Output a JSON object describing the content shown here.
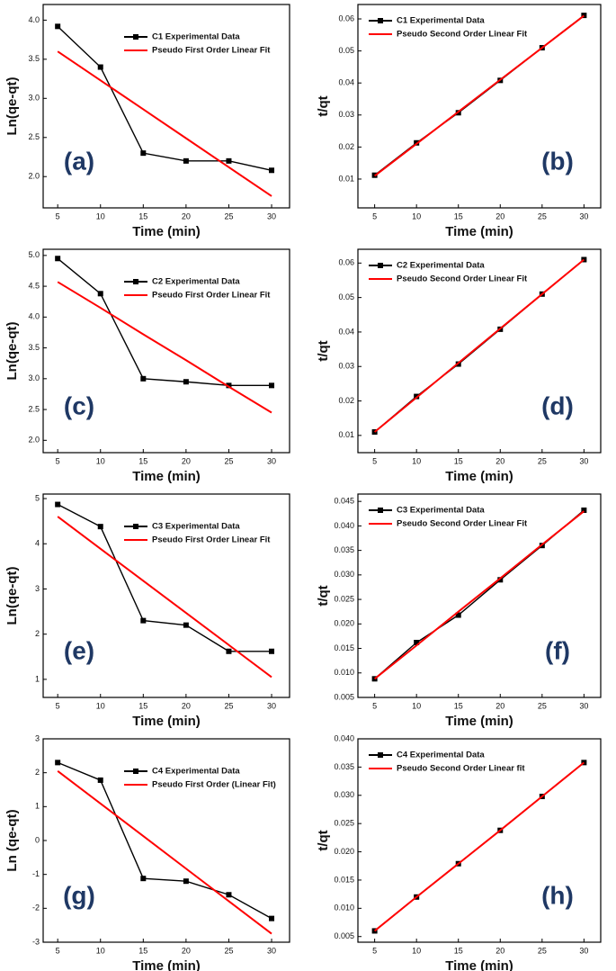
{
  "chart_data": [
    {
      "type": "line",
      "panel": "(a)",
      "xlabel": "Time (min)",
      "ylabel": "Ln(qe-qt)",
      "x": [
        5,
        10,
        15,
        20,
        25,
        30
      ],
      "xlim": [
        3.3,
        32.1
      ],
      "xticks": [
        5,
        10,
        15,
        20,
        25,
        30
      ],
      "ylim": [
        1.6,
        4.2
      ],
      "yticks": [
        {
          "value": 2,
          "label": "2.0"
        },
        2.5,
        {
          "value": 3,
          "label": "3.0"
        },
        3.5,
        {
          "value": 4,
          "label": "4.0"
        }
      ],
      "series": [
        {
          "name": "C1 Experimental Data",
          "color": "#000000",
          "marker": "square",
          "values": [
            3.92,
            3.4,
            2.3,
            2.2,
            2.2,
            2.08
          ]
        },
        {
          "name": "Pseudo First Order Linear Fit",
          "color": "#ff0000",
          "values": [
            3.6,
            3.23,
            2.86,
            2.49,
            2.12,
            1.75
          ]
        }
      ]
    },
    {
      "type": "line",
      "panel": "(b)",
      "xlabel": "Time (min)",
      "ylabel": "t/qt",
      "x": [
        5,
        10,
        15,
        20,
        25,
        30
      ],
      "xlim": [
        3.0,
        32.0
      ],
      "xticks": [
        5,
        10,
        15,
        20,
        25,
        30
      ],
      "ylim": [
        0.001,
        0.0645
      ],
      "yticks": [
        0.01,
        0.02,
        0.03,
        0.04,
        0.05,
        0.06
      ],
      "series": [
        {
          "name": "C1 Experimental Data",
          "color": "#000000",
          "marker": "square",
          "values": [
            0.0112,
            0.0213,
            0.0307,
            0.0408,
            0.051,
            0.0611
          ]
        },
        {
          "name": "Pseudo Second Order Linear Fit",
          "color": "#ff0000",
          "values": [
            0.011,
            0.021,
            0.031,
            0.041,
            0.051,
            0.061
          ]
        }
      ]
    },
    {
      "type": "line",
      "panel": "(c)",
      "xlabel": "Time (min)",
      "ylabel": "Ln(qe-qt)",
      "x": [
        5,
        10,
        15,
        20,
        25,
        30
      ],
      "xlim": [
        3.3,
        32.1
      ],
      "xticks": [
        5,
        10,
        15,
        20,
        25,
        30
      ],
      "ylim": [
        1.8,
        5.1
      ],
      "yticks": [
        {
          "value": 2,
          "label": "2.0"
        },
        2.5,
        {
          "value": 3,
          "label": "3.0"
        },
        3.5,
        {
          "value": 4,
          "label": "4.0"
        },
        4.5,
        {
          "value": 5,
          "label": "5.0"
        }
      ],
      "series": [
        {
          "name": "C2 Experimental Data",
          "color": "#000000",
          "marker": "square",
          "values": [
            4.95,
            4.38,
            3.0,
            2.95,
            2.89,
            2.89
          ]
        },
        {
          "name": "Pseudo First Order Linear Fit",
          "color": "#ff0000",
          "values": [
            4.57,
            4.15,
            3.72,
            3.3,
            2.87,
            2.45
          ]
        }
      ]
    },
    {
      "type": "line",
      "panel": "(d)",
      "xlabel": "Time (min)",
      "ylabel": "t/qt",
      "x": [
        5,
        10,
        15,
        20,
        25,
        30
      ],
      "xlim": [
        3.0,
        32.0
      ],
      "xticks": [
        5,
        10,
        15,
        20,
        25,
        30
      ],
      "ylim": [
        0.005,
        0.064
      ],
      "yticks": [
        0.01,
        0.02,
        0.03,
        0.04,
        0.05,
        0.06
      ],
      "series": [
        {
          "name": "C2 Experimental Data",
          "color": "#000000",
          "marker": "square",
          "values": [
            0.011,
            0.0213,
            0.0307,
            0.0408,
            0.051,
            0.061
          ]
        },
        {
          "name": "Pseudo Second Order Linear Fit",
          "color": "#ff0000",
          "values": [
            0.011,
            0.021,
            0.031,
            0.041,
            0.051,
            0.061
          ]
        }
      ]
    },
    {
      "type": "line",
      "panel": "(e)",
      "xlabel": "Time (min)",
      "ylabel": "Ln(qe-qt)",
      "x": [
        5,
        10,
        15,
        20,
        25,
        30
      ],
      "xlim": [
        3.3,
        32.1
      ],
      "xticks": [
        5,
        10,
        15,
        20,
        25,
        30
      ],
      "ylim": [
        0.6,
        5.1
      ],
      "yticks": [
        1,
        2,
        3,
        4,
        5
      ],
      "series": [
        {
          "name": "C3 Experimental Data",
          "color": "#000000",
          "marker": "square",
          "values": [
            4.87,
            4.38,
            2.3,
            2.2,
            1.62,
            1.62
          ]
        },
        {
          "name": "Pseudo First Order Linear Fit",
          "color": "#ff0000",
          "values": [
            4.6,
            3.89,
            3.18,
            2.47,
            1.76,
            1.05
          ]
        }
      ]
    },
    {
      "type": "line",
      "panel": "(f)",
      "xlabel": "Time (min)",
      "ylabel": "t/qt",
      "x": [
        5,
        10,
        15,
        20,
        25,
        30
      ],
      "xlim": [
        3.0,
        32.0
      ],
      "xticks": [
        5,
        10,
        15,
        20,
        25,
        30
      ],
      "ylim": [
        0.005,
        0.0465
      ],
      "yticks": [
        0.005,
        {
          "value": 0.01,
          "label": "0.010"
        },
        0.015,
        {
          "value": 0.02,
          "label": "0.020"
        },
        0.025,
        {
          "value": 0.03,
          "label": "0.030"
        },
        0.035,
        {
          "value": 0.04,
          "label": "0.040"
        },
        0.045
      ],
      "series": [
        {
          "name": "C3 Experimental Data",
          "color": "#000000",
          "marker": "square",
          "values": [
            0.0088,
            0.0162,
            0.0218,
            0.029,
            0.036,
            0.0432
          ]
        },
        {
          "name": "Pseudo Second Order Linear Fit",
          "color": "#ff0000",
          "values": [
            0.0088,
            0.0156,
            0.0225,
            0.0293,
            0.0362,
            0.043
          ]
        }
      ]
    },
    {
      "type": "line",
      "panel": "(g)",
      "xlabel": "Time (min)",
      "ylabel": "Ln (qe-qt)",
      "x": [
        5,
        10,
        15,
        20,
        25,
        30
      ],
      "xlim": [
        3.3,
        32.1
      ],
      "xticks": [
        5,
        10,
        15,
        20,
        25,
        30
      ],
      "ylim": [
        -3,
        3
      ],
      "yticks": [
        -3,
        -2,
        -1,
        0,
        1,
        2,
        3
      ],
      "series": [
        {
          "name": "C4 Experimental Data",
          "color": "#000000",
          "marker": "square",
          "values": [
            2.3,
            1.78,
            -1.12,
            -1.2,
            -1.6,
            -2.3
          ]
        },
        {
          "name": "Pseudo First Order (Linear Fit)",
          "color": "#ff0000",
          "values": [
            2.05,
            1.09,
            0.13,
            -0.83,
            -1.79,
            -2.75
          ]
        }
      ]
    },
    {
      "type": "line",
      "panel": "(h)",
      "xlabel": "Time (min)",
      "ylabel": "t/qt",
      "x": [
        5,
        10,
        15,
        20,
        25,
        30
      ],
      "xlim": [
        3.0,
        32.0
      ],
      "xticks": [
        5,
        10,
        15,
        20,
        25,
        30
      ],
      "ylim": [
        0.004,
        0.04
      ],
      "yticks": [
        0.005,
        {
          "value": 0.01,
          "label": "0.010"
        },
        0.015,
        {
          "value": 0.02,
          "label": "0.020"
        },
        0.025,
        {
          "value": 0.03,
          "label": "0.030"
        },
        0.035,
        {
          "value": 0.04,
          "label": "0.040"
        }
      ],
      "series": [
        {
          "name": "C4 Experimental Data",
          "color": "#000000",
          "marker": "square",
          "values": [
            0.006,
            0.012,
            0.0179,
            0.0238,
            0.0298,
            0.0358
          ]
        },
        {
          "name": "Pseudo Second Order Linear fit",
          "color": "#ff0000",
          "values": [
            0.006,
            0.012,
            0.0179,
            0.0238,
            0.0298,
            0.0358
          ]
        }
      ]
    }
  ]
}
